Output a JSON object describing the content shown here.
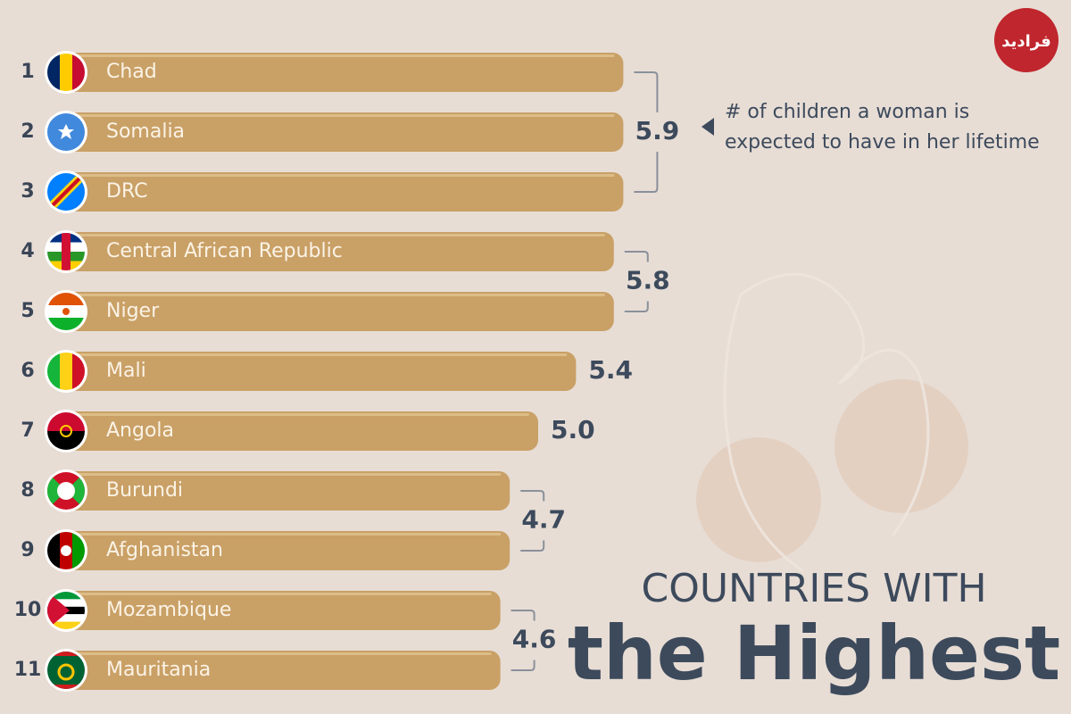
{
  "logo": "فرادید",
  "chart_data": {
    "type": "bar",
    "orientation": "horizontal",
    "title_lines": [
      "COUNTRIES WITH",
      "the Highest"
    ],
    "annotation_lines": [
      "# of children a woman is",
      "expected to have in her lifetime"
    ],
    "ranks": [
      1,
      2,
      3,
      4,
      5,
      6,
      7,
      8,
      9,
      10,
      11
    ],
    "categories": [
      "Chad",
      "Somalia",
      "DRC",
      "Central African Republic",
      "Niger",
      "Mali",
      "Angola",
      "Burundi",
      "Afghanistan",
      "Mozambique",
      "Mauritania"
    ],
    "values": [
      5.9,
      5.9,
      5.9,
      5.8,
      5.8,
      5.4,
      5.0,
      4.7,
      4.7,
      4.6,
      4.6
    ],
    "value_labels": [
      "5.9",
      null,
      null,
      "5.8",
      null,
      "5.4",
      "5.0",
      "4.7",
      null,
      "4.6",
      null
    ],
    "xlim": [
      0,
      6
    ],
    "color": "#c9a066"
  }
}
